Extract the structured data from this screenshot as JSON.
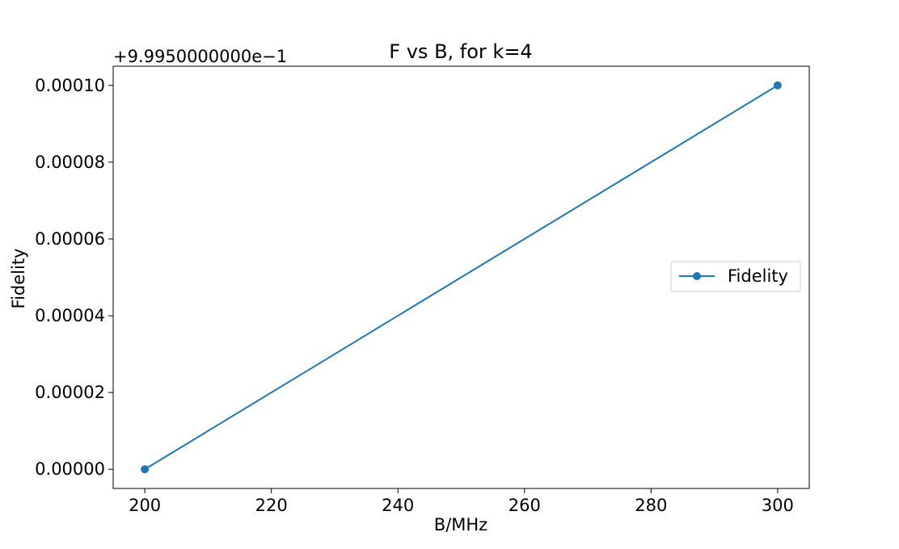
{
  "chart_data": {
    "type": "line",
    "title": "F vs B, for k=4",
    "xlabel": "B/MHz",
    "ylabel": "Fidelity",
    "y_offset_label": "+9.9950000000e−1",
    "xlim": [
      195,
      305
    ],
    "ylim": [
      -5e-06,
      0.000105
    ],
    "x_ticks": [
      200,
      220,
      240,
      260,
      280,
      300
    ],
    "x_tick_labels": [
      "200",
      "220",
      "240",
      "260",
      "280",
      "300"
    ],
    "y_ticks": [
      0,
      2e-05,
      4e-05,
      6e-05,
      8e-05,
      0.0001
    ],
    "y_tick_labels": [
      "0.00000",
      "0.00002",
      "0.00004",
      "0.00006",
      "0.00008",
      "0.00010"
    ],
    "grid": false,
    "legend_position": "center-right",
    "series": [
      {
        "name": "Fidelity",
        "color": "#1f77b4",
        "marker": "circle",
        "x": [
          200,
          300
        ],
        "y": [
          0,
          0.0001
        ]
      }
    ]
  }
}
